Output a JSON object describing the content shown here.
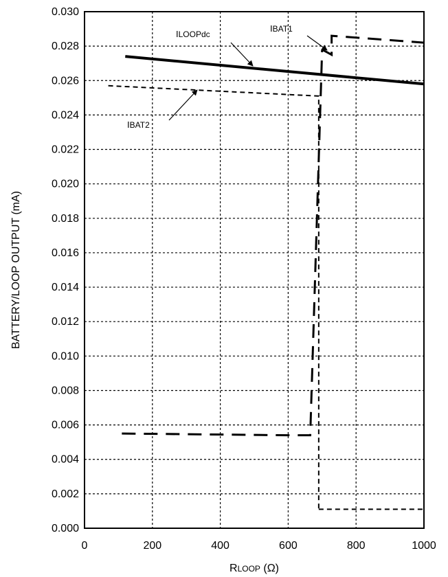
{
  "chart_data": {
    "type": "line",
    "xlabel_main": "R",
    "xlabel_sub": "LOOP",
    "xlabel_unit": " (Ω)",
    "ylabel": "BATTERY/LOOP OUTPUT (mA)",
    "xlim": [
      0,
      1000
    ],
    "ylim": [
      0,
      0.03
    ],
    "x_ticks": [
      0,
      200,
      400,
      600,
      800,
      1000
    ],
    "x_tick_labels": [
      "0",
      "200",
      "400",
      "600",
      "800",
      "1000"
    ],
    "y_ticks": [
      0,
      0.002,
      0.004,
      0.006,
      0.008,
      0.01,
      0.012,
      0.014,
      0.016,
      0.018,
      0.02,
      0.022,
      0.024,
      0.026,
      0.028,
      0.03
    ],
    "y_tick_labels": [
      "0.000",
      "0.002",
      "0.004",
      "0.006",
      "0.008",
      "0.010",
      "0.012",
      "0.014",
      "0.016",
      "0.018",
      "0.020",
      "0.022",
      "0.024",
      "0.026",
      "0.028",
      "0.030"
    ],
    "grid": true,
    "series": [
      {
        "name": "ILOOPdc",
        "style": "solid",
        "x": [
          120,
          1000
        ],
        "y": [
          0.0274,
          0.0258
        ]
      },
      {
        "name": "IBAT1",
        "style": "dashed",
        "x": [
          690,
          690,
          1000,
          1000
        ],
        "y": [
          0.0011,
          0.0011,
          0.0011,
          0.0011
        ]
      },
      {
        "name": "IBAT2",
        "style": "dashed",
        "x": [
          70,
          690,
          690
        ],
        "y": [
          0.0257,
          0.0251,
          0.0011
        ]
      }
    ],
    "annotations": [
      {
        "main": "I",
        "sub": "LOOPdc"
      },
      {
        "main": "I",
        "sub": "BAT1"
      },
      {
        "main": "I",
        "sub": "BAT2"
      }
    ]
  }
}
